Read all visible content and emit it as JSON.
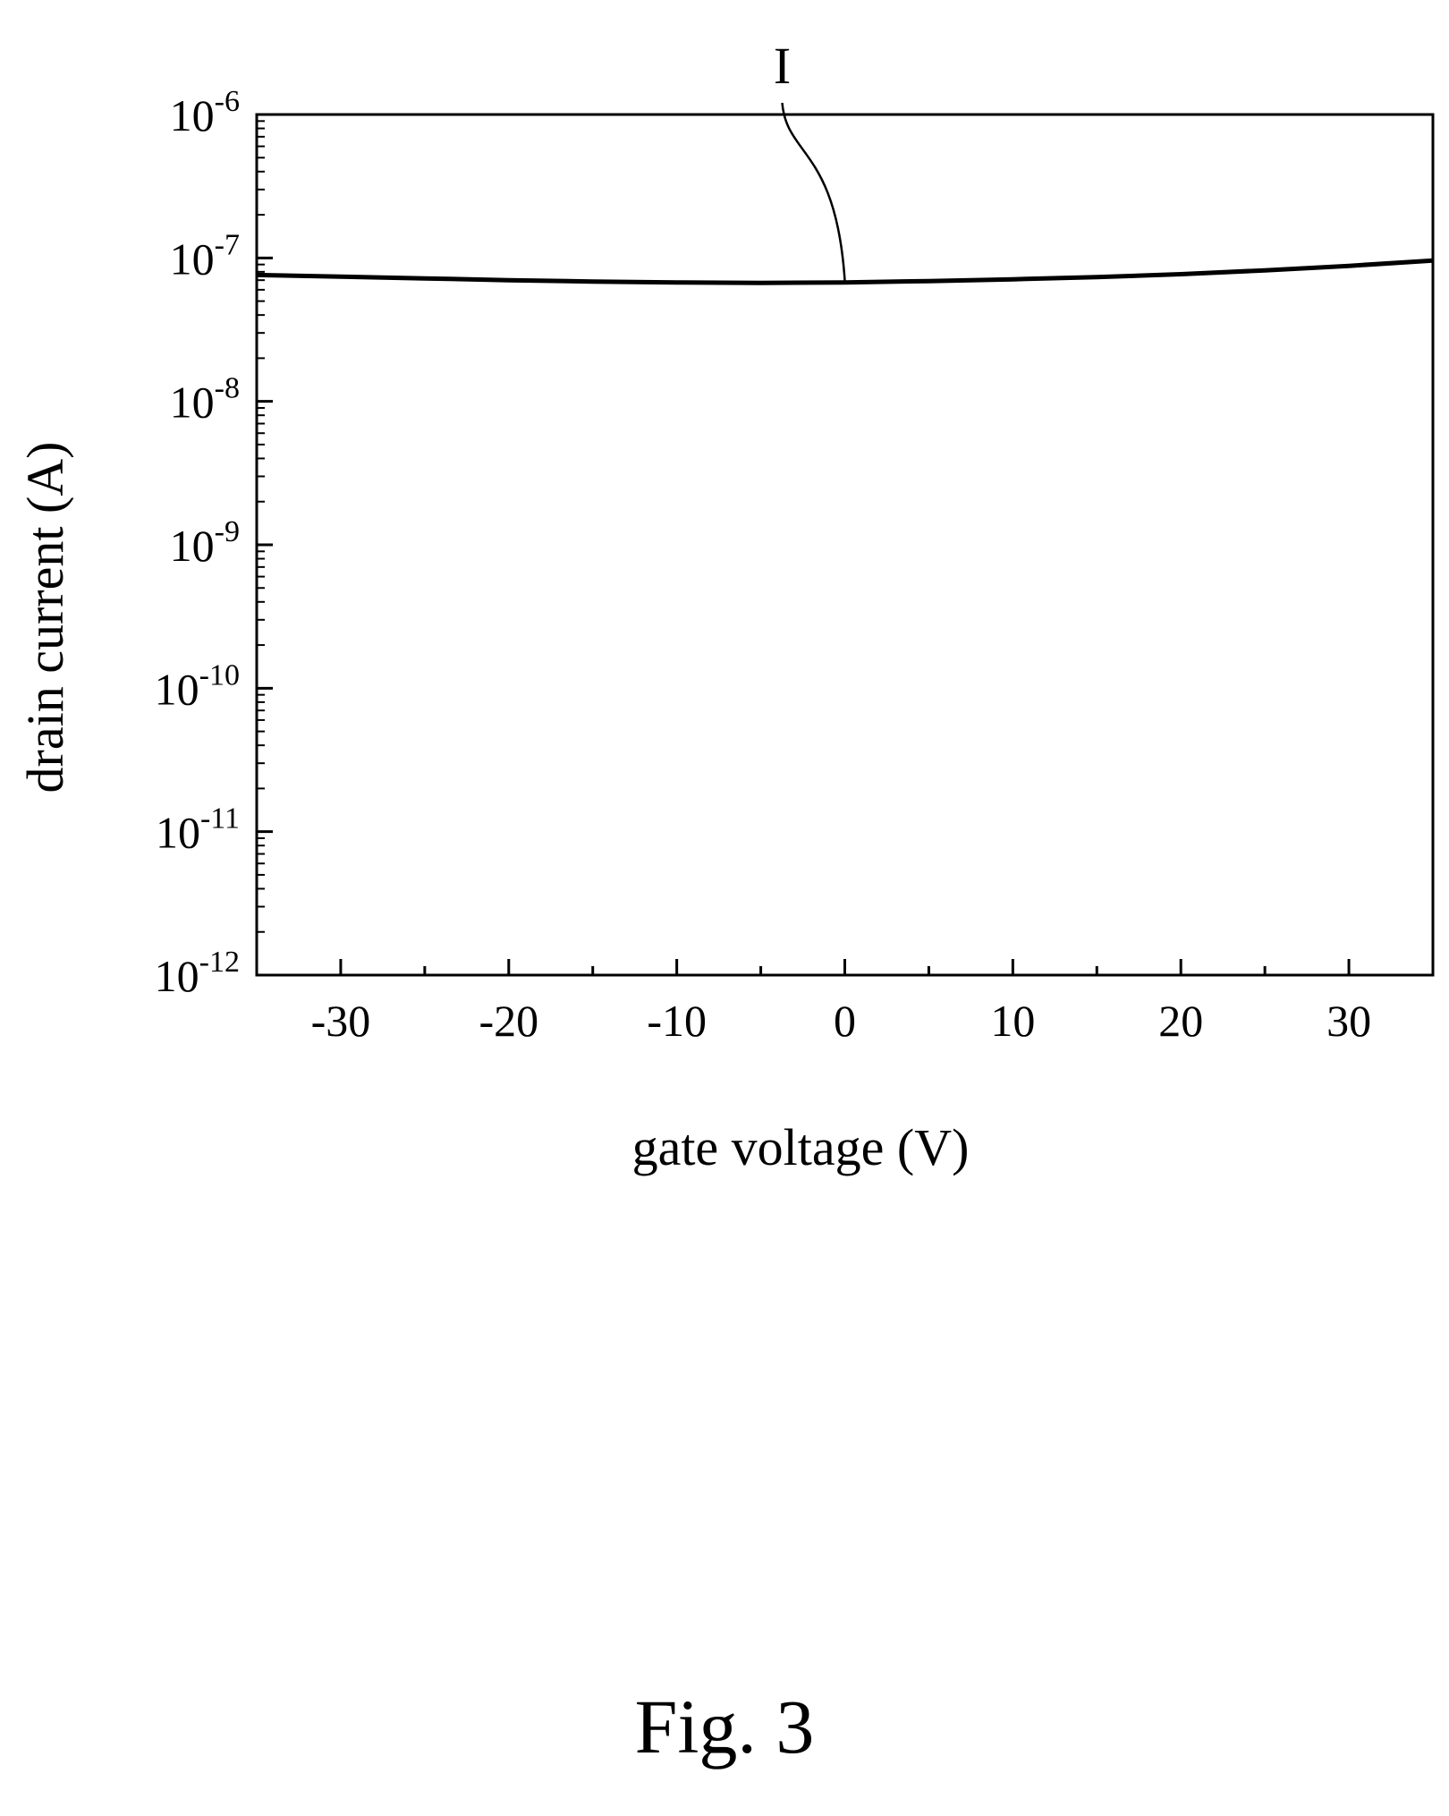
{
  "figure_caption": "Fig. 3",
  "chart_data": {
    "type": "line",
    "xlabel": "gate voltage (V)",
    "ylabel": "drain current (A)",
    "xlim": [
      -35,
      35
    ],
    "ylim": [
      1e-12,
      1e-06
    ],
    "y_scale": "log",
    "grid": false,
    "x_ticks": [
      -30,
      -20,
      -10,
      0,
      10,
      20,
      30
    ],
    "x_tick_labels": [
      "-30",
      "-20",
      "-10",
      "0",
      "10",
      "20",
      "30"
    ],
    "y_ticks": [
      {
        "value": 1e-12,
        "base": "10",
        "exp": "-12"
      },
      {
        "value": 1e-11,
        "base": "10",
        "exp": "-11"
      },
      {
        "value": 1e-10,
        "base": "10",
        "exp": "-10"
      },
      {
        "value": 1e-09,
        "base": "10",
        "exp": "-9"
      },
      {
        "value": 1e-08,
        "base": "10",
        "exp": "-8"
      },
      {
        "value": 1e-07,
        "base": "10",
        "exp": "-7"
      },
      {
        "value": 1e-06,
        "base": "10",
        "exp": "-6"
      }
    ],
    "series": [
      {
        "name": "I",
        "x": [
          -35,
          -30,
          -25,
          -20,
          -15,
          -10,
          -5,
          0,
          5,
          10,
          15,
          20,
          25,
          30,
          35
        ],
        "y": [
          7.6e-08,
          7.4e-08,
          7.2e-08,
          7e-08,
          6.85e-08,
          6.75e-08,
          6.7e-08,
          6.75e-08,
          6.9e-08,
          7.1e-08,
          7.35e-08,
          7.7e-08,
          8.2e-08,
          8.8e-08,
          9.6e-08
        ]
      }
    ],
    "annotations": [
      {
        "text": "I",
        "x": 0,
        "y": 6.75e-08
      }
    ]
  }
}
